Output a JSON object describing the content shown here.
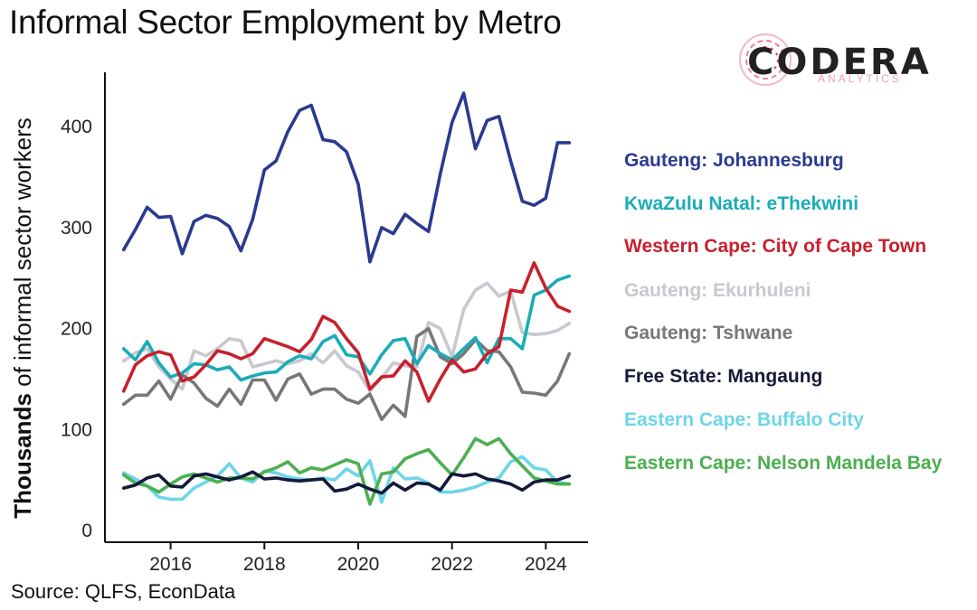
{
  "chart_data": {
    "type": "line",
    "title": "Informal Sector Employment by Metro",
    "xlabel": "",
    "ylabel_bold": "Thousands",
    "ylabel_rest": " of informal sector workers",
    "xlim": [
      2014.6,
      2024.9
    ],
    "ylim": [
      0,
      450
    ],
    "yticks": [
      0,
      100,
      200,
      300,
      400
    ],
    "xticks": [
      2016,
      2018,
      2020,
      2022,
      2024
    ],
    "ytick_labels": [
      "0",
      "100",
      "200",
      "300",
      "400"
    ],
    "xtick_labels": [
      "2016",
      "2018",
      "2020",
      "2022",
      "2024"
    ],
    "legend_position": "right",
    "x": [
      2015.0,
      2015.25,
      2015.5,
      2015.75,
      2016.0,
      2016.25,
      2016.5,
      2016.75,
      2017.0,
      2017.25,
      2017.5,
      2017.75,
      2018.0,
      2018.25,
      2018.5,
      2018.75,
      2019.0,
      2019.25,
      2019.5,
      2019.75,
      2020.0,
      2020.25,
      2020.5,
      2020.75,
      2021.0,
      2021.25,
      2021.5,
      2021.75,
      2022.0,
      2022.25,
      2022.5,
      2022.75,
      2023.0,
      2023.25,
      2023.5,
      2023.75,
      2024.0,
      2024.25,
      2024.5
    ],
    "series": [
      {
        "name": "Gauteng: Johannesburg",
        "color": "#2a3a8f",
        "values": [
          278,
          298,
          320,
          310,
          311,
          274,
          306,
          312,
          309,
          301,
          277,
          308,
          357,
          366,
          395,
          416,
          421,
          387,
          385,
          375,
          343,
          266,
          300,
          294,
          313,
          304,
          296,
          353,
          404,
          433,
          378,
          406,
          410,
          366,
          326,
          322,
          329,
          384,
          384
        ]
      },
      {
        "name": "KwaZulu Natal: eThekwini",
        "color": "#1aacb8",
        "values": [
          180,
          169,
          187,
          166,
          152,
          156,
          165,
          164,
          159,
          162,
          149,
          153,
          156,
          157,
          167,
          173,
          170,
          187,
          193,
          174,
          172,
          155,
          174,
          188,
          190,
          165,
          183,
          175,
          169,
          180,
          191,
          166,
          190,
          190,
          180,
          233,
          238,
          248,
          252
        ]
      },
      {
        "name": "Western Cape: City of Cape Town",
        "color": "#c8202e",
        "values": [
          138,
          164,
          173,
          177,
          174,
          148,
          152,
          164,
          178,
          175,
          170,
          175,
          190,
          186,
          182,
          177,
          189,
          212,
          206,
          190,
          176,
          140,
          152,
          153,
          168,
          157,
          128,
          150,
          169,
          157,
          160,
          175,
          182,
          238,
          236,
          265,
          240,
          222,
          217
        ]
      },
      {
        "name": "Gauteng: Ekurhuleni",
        "color": "#c8c8ce",
        "values": [
          168,
          176,
          180,
          162,
          150,
          140,
          178,
          173,
          180,
          190,
          188,
          162,
          165,
          168,
          165,
          168,
          175,
          166,
          178,
          163,
          157,
          138,
          151,
          166,
          163,
          162,
          206,
          200,
          172,
          219,
          238,
          245,
          232,
          237,
          196,
          194,
          195,
          198,
          205
        ]
      },
      {
        "name": "Gauteng: Tshwane",
        "color": "#777777",
        "values": [
          125,
          134,
          134,
          148,
          130,
          154,
          146,
          131,
          123,
          140,
          125,
          149,
          149,
          129,
          150,
          155,
          135,
          140,
          140,
          130,
          126,
          135,
          110,
          124,
          113,
          192,
          200,
          172,
          165,
          175,
          189,
          178,
          177,
          162,
          137,
          136,
          134,
          148,
          175
        ]
      },
      {
        "name": "Free State: Mangaung",
        "color": "#141a3a",
        "values": [
          42,
          45,
          52,
          55,
          44,
          43,
          54,
          56,
          53,
          50,
          53,
          58,
          51,
          52,
          50,
          49,
          50,
          51,
          39,
          41,
          46,
          41,
          37,
          47,
          40,
          47,
          46,
          40,
          56,
          54,
          56,
          51,
          49,
          46,
          40,
          48,
          50,
          50,
          54
        ]
      },
      {
        "name": "Eastern Cape: Buffalo City",
        "color": "#6dd6e8",
        "values": [
          57,
          51,
          44,
          33,
          31,
          31,
          42,
          48,
          54,
          66,
          52,
          48,
          59,
          57,
          53,
          51,
          50,
          52,
          50,
          61,
          54,
          69,
          28,
          62,
          51,
          52,
          47,
          38,
          38,
          40,
          43,
          48,
          52,
          68,
          73,
          62,
          60,
          48,
          46
        ]
      },
      {
        "name": "Eastern Cape: Nelson Mandela Bay",
        "color": "#4caf50",
        "values": [
          55,
          47,
          44,
          38,
          46,
          53,
          56,
          52,
          48,
          52,
          52,
          51,
          58,
          62,
          68,
          57,
          62,
          60,
          65,
          70,
          66,
          26,
          56,
          58,
          71,
          76,
          80,
          67,
          55,
          72,
          91,
          85,
          91,
          76,
          64,
          52,
          49,
          46,
          46
        ]
      }
    ]
  },
  "page": {
    "title": "Informal Sector Employment by Metro",
    "source": "Source: QLFS, EconData"
  },
  "logo": {
    "name": "CODERA",
    "sub": "ANALYTICS",
    "accent": "#e35b7a"
  }
}
